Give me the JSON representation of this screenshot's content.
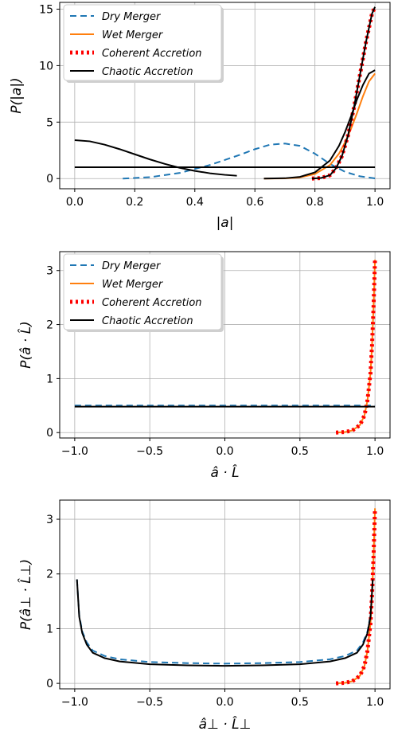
{
  "chart_data": [
    {
      "type": "line",
      "xlabel": "|a|",
      "ylabel": "P(|a|)",
      "xlim": [
        -0.05,
        1.05
      ],
      "ylim": [
        -0.9,
        15.6
      ],
      "xticks": [
        0.0,
        0.2,
        0.4,
        0.6,
        0.8,
        1.0
      ],
      "xtick_labels": [
        "0.0",
        "0.2",
        "0.4",
        "0.6",
        "0.8",
        "1.0"
      ],
      "yticks": [
        0,
        5,
        10,
        15
      ],
      "ytick_labels": [
        "0",
        "5",
        "10",
        "15"
      ],
      "grid": true,
      "legend": "top-left",
      "series": [
        {
          "name": "Dry Merger",
          "color": "#1f77b4",
          "style": "dashed",
          "x": [
            0.16,
            0.25,
            0.35,
            0.45,
            0.55,
            0.6,
            0.65,
            0.7,
            0.75,
            0.8,
            0.85,
            0.9,
            0.95,
            1.0
          ],
          "y": [
            0.0,
            0.12,
            0.5,
            1.2,
            2.1,
            2.6,
            3.0,
            3.1,
            2.9,
            2.2,
            1.3,
            0.6,
            0.2,
            0.02
          ]
        },
        {
          "name": "Wet Merger",
          "color": "#ff7f0e",
          "style": "solid",
          "x": [
            0.63,
            0.7,
            0.75,
            0.8,
            0.85,
            0.88,
            0.9,
            0.92,
            0.94,
            0.96,
            0.98,
            1.0
          ],
          "y": [
            0.0,
            0.02,
            0.1,
            0.4,
            1.2,
            2.2,
            3.2,
            4.4,
            5.8,
            7.3,
            8.6,
            9.3
          ]
        },
        {
          "name": "Coherent Accretion",
          "color": "#ff0000",
          "style": "dotted",
          "x": [
            0.79,
            0.82,
            0.85,
            0.87,
            0.89,
            0.91,
            0.93,
            0.95,
            0.97,
            0.99,
            1.0
          ],
          "y": [
            0.0,
            0.05,
            0.3,
            0.9,
            2.0,
            3.8,
            6.3,
            9.2,
            12.1,
            14.6,
            15.2
          ]
        },
        {
          "name": "Chaotic Accretion",
          "color": "#000000",
          "style": "solid",
          "x": [
            0.0,
            0.05,
            0.1,
            0.15,
            0.2,
            0.25,
            0.3,
            0.35,
            0.4,
            0.45,
            0.5,
            0.54
          ],
          "y": [
            3.4,
            3.3,
            3.0,
            2.6,
            2.15,
            1.7,
            1.3,
            0.95,
            0.68,
            0.47,
            0.33,
            0.25
          ],
          "extra_lines": [
            {
              "x": [
                0.0,
                1.0
              ],
              "y": [
                1.0,
                1.0
              ]
            },
            {
              "x": [
                0.63,
                0.7,
                0.75,
                0.8,
                0.85,
                0.88,
                0.9,
                0.92,
                0.94,
                0.96,
                0.98,
                1.0
              ],
              "y": [
                0.0,
                0.03,
                0.15,
                0.55,
                1.6,
                2.9,
                4.1,
                5.5,
                7.0,
                8.3,
                9.3,
                9.6
              ]
            },
            {
              "x": [
                0.79,
                0.82,
                0.85,
                0.87,
                0.89,
                0.91,
                0.93,
                0.95,
                0.97,
                0.99,
                1.0
              ],
              "y": [
                0.0,
                0.05,
                0.3,
                0.9,
                2.0,
                3.8,
                6.3,
                9.2,
                12.1,
                14.6,
                15.2
              ]
            }
          ]
        }
      ]
    },
    {
      "type": "line",
      "xlabel": "â · L̂",
      "ylabel": "P(â · L̂)",
      "xlim": [
        -1.1,
        1.1
      ],
      "ylim": [
        -0.1,
        3.35
      ],
      "xticks": [
        -1.0,
        -0.5,
        0.0,
        0.5,
        1.0
      ],
      "xtick_labels": [
        "−1.0",
        "−0.5",
        "0.0",
        "0.5",
        "1.0"
      ],
      "yticks": [
        0,
        1,
        2,
        3
      ],
      "ytick_labels": [
        "0",
        "1",
        "2",
        "3"
      ],
      "grid": true,
      "legend": "top-left",
      "series": [
        {
          "name": "Dry Merger",
          "color": "#1f77b4",
          "style": "dashed",
          "x": [
            -1.0,
            1.0
          ],
          "y": [
            0.5,
            0.5
          ]
        },
        {
          "name": "Wet Merger",
          "color": "#ff7f0e",
          "style": "solid",
          "x": [
            0.74,
            0.8,
            0.85,
            0.9,
            0.93,
            0.95,
            0.97,
            0.98,
            0.99,
            1.0
          ],
          "y": [
            0.0,
            0.01,
            0.04,
            0.14,
            0.32,
            0.6,
            1.1,
            1.6,
            2.3,
            3.2
          ]
        },
        {
          "name": "Coherent Accretion",
          "color": "#ff0000",
          "style": "dotted",
          "x": [
            0.74,
            0.8,
            0.85,
            0.9,
            0.93,
            0.95,
            0.97,
            0.98,
            0.99,
            1.0
          ],
          "y": [
            0.0,
            0.01,
            0.04,
            0.14,
            0.32,
            0.6,
            1.1,
            1.6,
            2.3,
            3.2
          ]
        },
        {
          "name": "Chaotic Accretion",
          "color": "#000000",
          "style": "solid",
          "x": [
            -1.0,
            1.0
          ],
          "y": [
            0.48,
            0.48
          ]
        }
      ]
    },
    {
      "type": "line",
      "xlabel": "â⊥ · L̂⊥",
      "ylabel": "P(â⊥ · L̂⊥)",
      "xlim": [
        -1.1,
        1.1
      ],
      "ylim": [
        -0.1,
        3.35
      ],
      "xticks": [
        -1.0,
        -0.5,
        0.0,
        0.5,
        1.0
      ],
      "xtick_labels": [
        "−1.0",
        "−0.5",
        "0.0",
        "0.5",
        "1.0"
      ],
      "yticks": [
        0,
        1,
        2,
        3
      ],
      "ytick_labels": [
        "0",
        "1",
        "2",
        "3"
      ],
      "grid": true,
      "series": [
        {
          "name": "Dry Merger",
          "color": "#1f77b4",
          "style": "dashed",
          "x": [
            -0.985,
            -0.97,
            -0.95,
            -0.92,
            -0.88,
            -0.8,
            -0.7,
            -0.5,
            -0.25,
            0.0,
            0.25,
            0.5,
            0.7,
            0.8,
            0.88,
            0.92,
            0.95,
            0.97,
            0.985
          ],
          "y": [
            1.9,
            1.25,
            0.95,
            0.75,
            0.6,
            0.5,
            0.44,
            0.39,
            0.37,
            0.36,
            0.37,
            0.39,
            0.44,
            0.5,
            0.6,
            0.75,
            0.95,
            1.25,
            1.9
          ]
        },
        {
          "name": "Wet Merger",
          "color": "#ff7f0e",
          "style": "solid",
          "x": [
            0.74,
            0.8,
            0.85,
            0.9,
            0.93,
            0.95,
            0.97,
            0.98,
            0.99,
            1.0
          ],
          "y": [
            0.0,
            0.01,
            0.04,
            0.14,
            0.32,
            0.6,
            1.1,
            1.6,
            2.3,
            3.2
          ]
        },
        {
          "name": "Coherent Accretion",
          "color": "#ff0000",
          "style": "dotted",
          "x": [
            0.74,
            0.8,
            0.85,
            0.9,
            0.93,
            0.95,
            0.97,
            0.98,
            0.99,
            1.0
          ],
          "y": [
            0.0,
            0.01,
            0.04,
            0.14,
            0.32,
            0.6,
            1.1,
            1.6,
            2.3,
            3.2
          ]
        },
        {
          "name": "Chaotic Accretion",
          "color": "#000000",
          "style": "solid",
          "x": [
            -0.985,
            -0.97,
            -0.95,
            -0.92,
            -0.88,
            -0.8,
            -0.7,
            -0.5,
            -0.25,
            0.0,
            0.25,
            0.5,
            0.7,
            0.8,
            0.88,
            0.92,
            0.95,
            0.97,
            0.985
          ],
          "y": [
            1.9,
            1.22,
            0.92,
            0.71,
            0.56,
            0.46,
            0.4,
            0.35,
            0.33,
            0.32,
            0.33,
            0.35,
            0.4,
            0.46,
            0.56,
            0.71,
            0.92,
            1.22,
            1.9
          ]
        }
      ]
    }
  ]
}
